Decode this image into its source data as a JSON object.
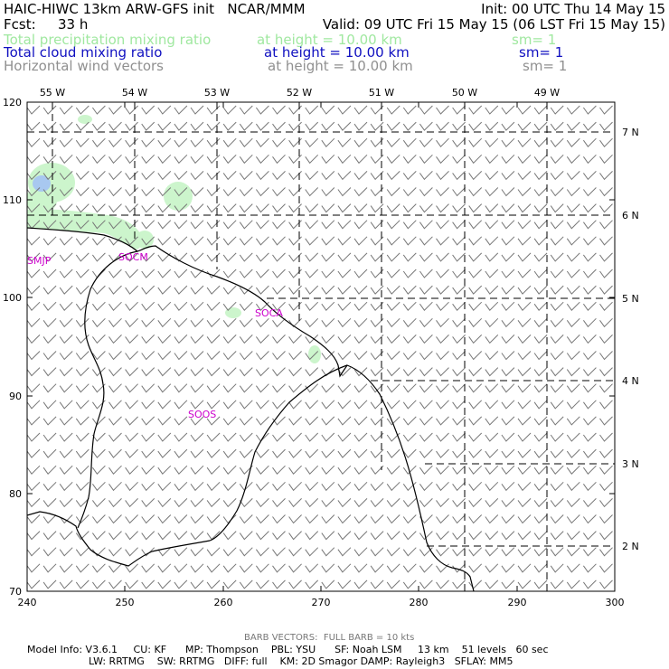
{
  "header": {
    "title": "HAIC-HIWC 13km ARW-GFS init   NCAR/MMM",
    "init": "Init: 00 UTC Thu 14 May 15",
    "fcst_label": "Fcst:",
    "fcst_value": "33 h",
    "valid": "Valid: 09 UTC Fri 15 May 15 (06 LST Fri 15 May 15)"
  },
  "fields": [
    {
      "name": "Total precipitation mixing ratio",
      "height": "at height = 10.00 km",
      "sm": "sm= 1",
      "color": "#a0e8a0"
    },
    {
      "name": "Total cloud mixing ratio",
      "height": "at height = 10.00 km",
      "sm": "sm= 1",
      "color": "#1010c0"
    },
    {
      "name": "Horizontal wind vectors",
      "height": "at height = 10.00 km",
      "sm": "sm= 1",
      "color": "#909090"
    }
  ],
  "map": {
    "x_ticks": [
      "240",
      "250",
      "260",
      "270",
      "280",
      "290",
      "300"
    ],
    "y_ticks": [
      "70",
      "80",
      "90",
      "100",
      "110",
      "120"
    ],
    "lon_labels": [
      "55 W",
      "54 W",
      "53 W",
      "52 W",
      "51 W",
      "50 W",
      "49 W"
    ],
    "lat_labels": [
      "7 N",
      "6 N",
      "5 N",
      "4 N",
      "3 N",
      "2 N"
    ],
    "stations": [
      "SMJP",
      "SOCM",
      "SOCA",
      "SOOS"
    ],
    "station_color": "#cc00cc",
    "precip_color": "#ccf5cc",
    "cloud_color": "#a8c8f0"
  },
  "footer": {
    "barb": "BARB VECTORS:  FULL BARB = 10 kts",
    "line1": "Model Info: V3.6.1     CU: KF      MP: Thompson    PBL: YSU      SF: Noah LSM     13 km    51 levels   60 sec",
    "line2": "LW: RRTMG    SW: RRTMG   DIFF: full    KM: 2D Smagor DAMP: Rayleigh3   SFLAY: MM5"
  }
}
